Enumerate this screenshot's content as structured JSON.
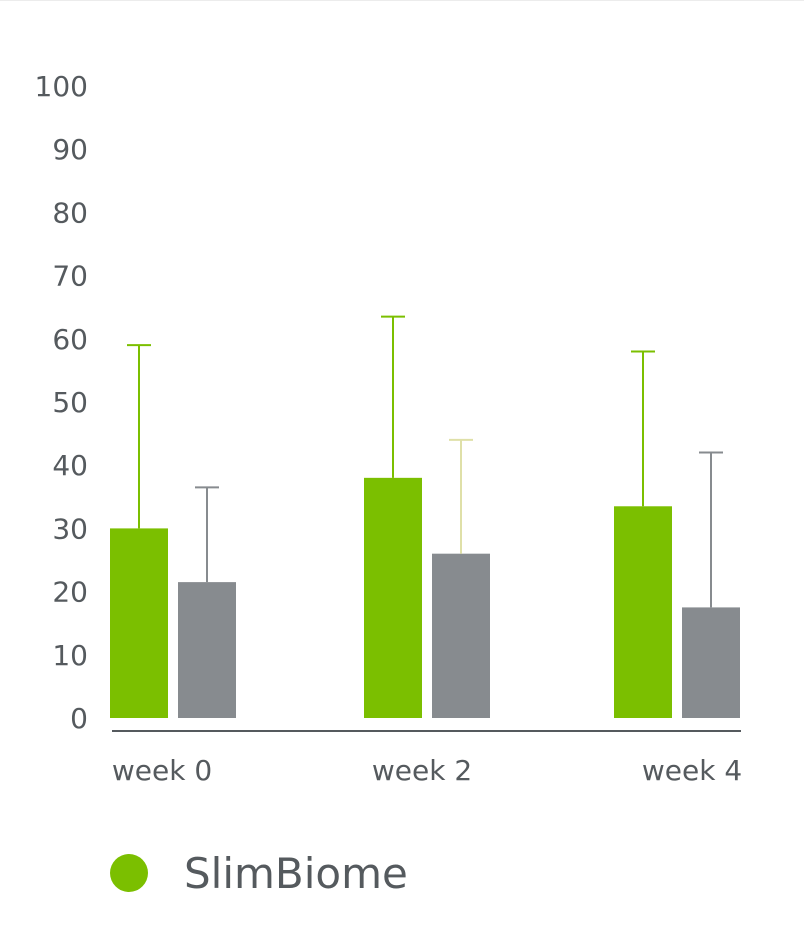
{
  "chart_data": {
    "type": "bar",
    "categories": [
      "week 0",
      "week 2",
      "week 4"
    ],
    "series": [
      {
        "name": "SlimBiome",
        "color": "#7bbf00",
        "error_color": "#7bbf00",
        "values": [
          30,
          38,
          33.5
        ],
        "error_upper": [
          59,
          63.5,
          58
        ]
      },
      {
        "name": "",
        "color": "#878b8f",
        "error_colors": [
          "#878b8f",
          "#dfe0a8",
          "#878b8f"
        ],
        "values": [
          21.5,
          26,
          17.5
        ],
        "error_upper": [
          36.5,
          44,
          42
        ]
      }
    ],
    "ylim": [
      0,
      100
    ],
    "yticks": [
      "100",
      "90",
      "80",
      "70",
      "60",
      "50",
      "40",
      "30",
      "20",
      "10",
      "0"
    ],
    "grid": false,
    "legend_position": "bottom-left"
  },
  "legend": {
    "label": "SlimBiome",
    "color": "#7bbf00"
  },
  "axis_color": "#555a5e"
}
